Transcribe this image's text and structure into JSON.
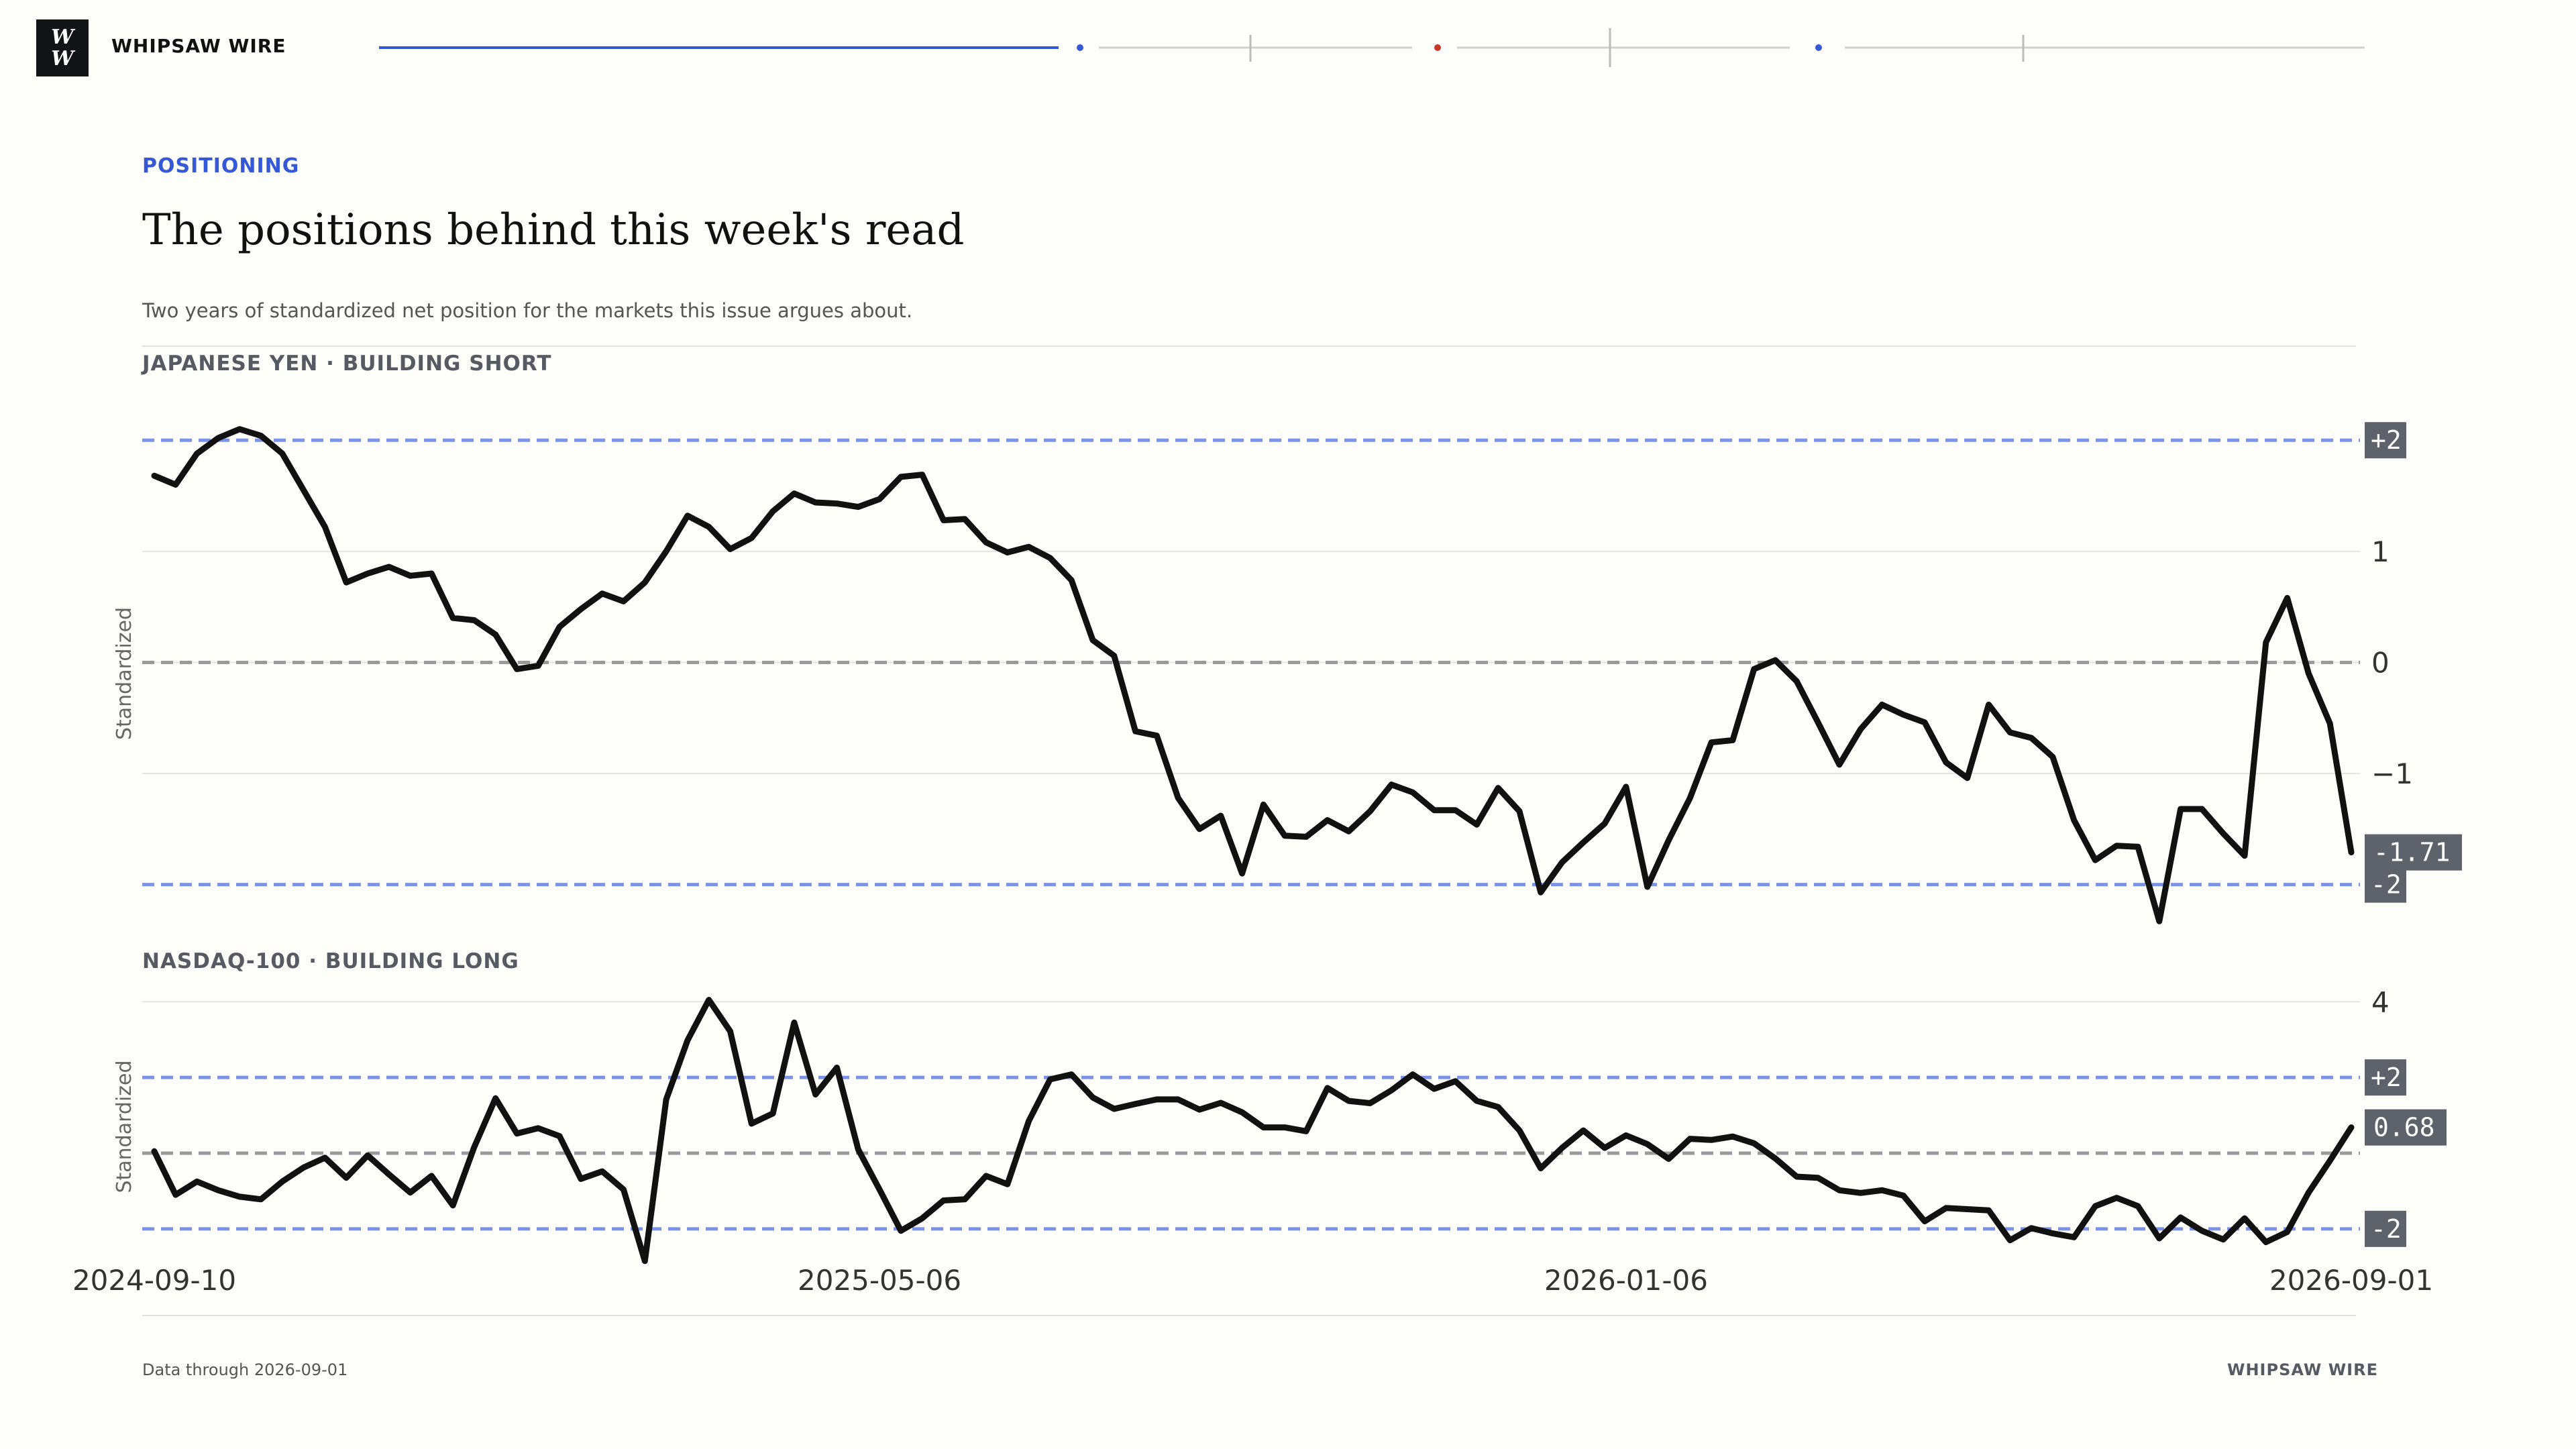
{
  "header": {
    "logo_line1": "W",
    "logo_line2": "W",
    "brand": "WHIPSAW WIRE"
  },
  "article": {
    "kicker": "POSITIONING",
    "title": "The positions behind this week's read",
    "subtitle": "Two years of standardized net position for the markets this issue argues about."
  },
  "footer": {
    "note": "Data through 2026-09-01",
    "brand": "WHIPSAW WIRE"
  },
  "colors": {
    "accent": "#3558d6",
    "band": "#7b93e6",
    "zero": "#9a9a9e",
    "line": "#111111",
    "badge": "#5d626b",
    "marker_red": "#c63a2a"
  },
  "chart_data": [
    {
      "type": "line",
      "title": "JAPANESE YEN · BUILDING SHORT",
      "ylabel": "Standardized",
      "ylim": [
        -2.6,
        2.4
      ],
      "yticks": [
        1,
        0,
        -1
      ],
      "bands": [
        {
          "value": 2,
          "label": "+2"
        },
        {
          "value": -2,
          "label": "-2"
        }
      ],
      "last_value_label": "-1.71",
      "x_start": "2024-09-10",
      "x_end": "2026-09-01",
      "values": [
        1.68,
        1.6,
        1.88,
        2.02,
        2.1,
        2.04,
        1.88,
        1.55,
        1.22,
        0.72,
        0.8,
        0.86,
        0.78,
        0.8,
        0.4,
        0.38,
        0.25,
        -0.06,
        -0.03,
        0.32,
        0.48,
        0.62,
        0.55,
        0.72,
        1.0,
        1.32,
        1.22,
        1.02,
        1.12,
        1.36,
        1.52,
        1.44,
        1.43,
        1.4,
        1.47,
        1.67,
        1.69,
        1.28,
        1.29,
        1.08,
        0.99,
        1.04,
        0.94,
        0.74,
        0.2,
        0.06,
        -0.62,
        -0.66,
        -1.22,
        -1.5,
        -1.38,
        -1.9,
        -1.28,
        -1.56,
        -1.57,
        -1.42,
        -1.52,
        -1.34,
        -1.1,
        -1.17,
        -1.33,
        -1.33,
        -1.46,
        -1.13,
        -1.34,
        -2.07,
        -1.8,
        -1.62,
        -1.45,
        -1.12,
        -2.02,
        -1.6,
        -1.22,
        -0.72,
        -0.7,
        -0.06,
        0.02,
        -0.17,
        -0.54,
        -0.92,
        -0.6,
        -0.38,
        -0.47,
        -0.54,
        -0.9,
        -1.04,
        -0.38,
        -0.63,
        -0.68,
        -0.85,
        -1.42,
        -1.78,
        -1.65,
        -1.66,
        -2.33,
        -1.32,
        -1.32,
        -1.54,
        -1.74,
        0.18,
        0.58,
        -0.1,
        -0.55,
        -1.71
      ]
    },
    {
      "type": "line",
      "title": "NASDAQ-100 · BUILDING LONG",
      "ylabel": "Standardized",
      "ylim": [
        -2.8,
        4.2
      ],
      "yticks": [
        4
      ],
      "bands": [
        {
          "value": 2,
          "label": "+2"
        },
        {
          "value": -2,
          "label": "-2"
        }
      ],
      "last_value_label": "0.68",
      "x_start": "2024-09-10",
      "x_end": "2026-09-01",
      "x_ticks": [
        "2024-09-10",
        "2025-05-06",
        "2026-01-06",
        "2026-09-01"
      ],
      "values": [
        0.05,
        -1.1,
        -0.75,
        -0.98,
        -1.15,
        -1.22,
        -0.75,
        -0.38,
        -0.12,
        -0.65,
        -0.06,
        -0.56,
        -1.04,
        -0.6,
        -1.38,
        0.16,
        1.45,
        0.52,
        0.66,
        0.45,
        -0.68,
        -0.48,
        -0.96,
        -2.85,
        1.42,
        2.98,
        4.05,
        3.22,
        0.78,
        1.05,
        3.45,
        1.55,
        2.26,
        0.1,
        -0.96,
        -2.05,
        -1.72,
        -1.25,
        -1.22,
        -0.6,
        -0.82,
        0.85,
        1.95,
        2.08,
        1.47,
        1.17,
        1.3,
        1.42,
        1.42,
        1.15,
        1.33,
        1.08,
        0.68,
        0.68,
        0.58,
        1.72,
        1.38,
        1.32,
        1.66,
        2.08,
        1.7,
        1.9,
        1.38,
        1.22,
        0.6,
        -0.4,
        0.14,
        0.6,
        0.14,
        0.47,
        0.24,
        -0.15,
        0.38,
        0.35,
        0.44,
        0.26,
        -0.14,
        -0.62,
        -0.65,
        -0.98,
        -1.05,
        -0.98,
        -1.12,
        -1.8,
        -1.45,
        -1.48,
        -1.51,
        -2.3,
        -1.98,
        -2.12,
        -2.22,
        -1.4,
        -1.18,
        -1.4,
        -2.25,
        -1.7,
        -2.05,
        -2.28,
        -1.72,
        -2.35,
        -2.08,
        -1.04,
        -0.2,
        0.68
      ]
    }
  ]
}
